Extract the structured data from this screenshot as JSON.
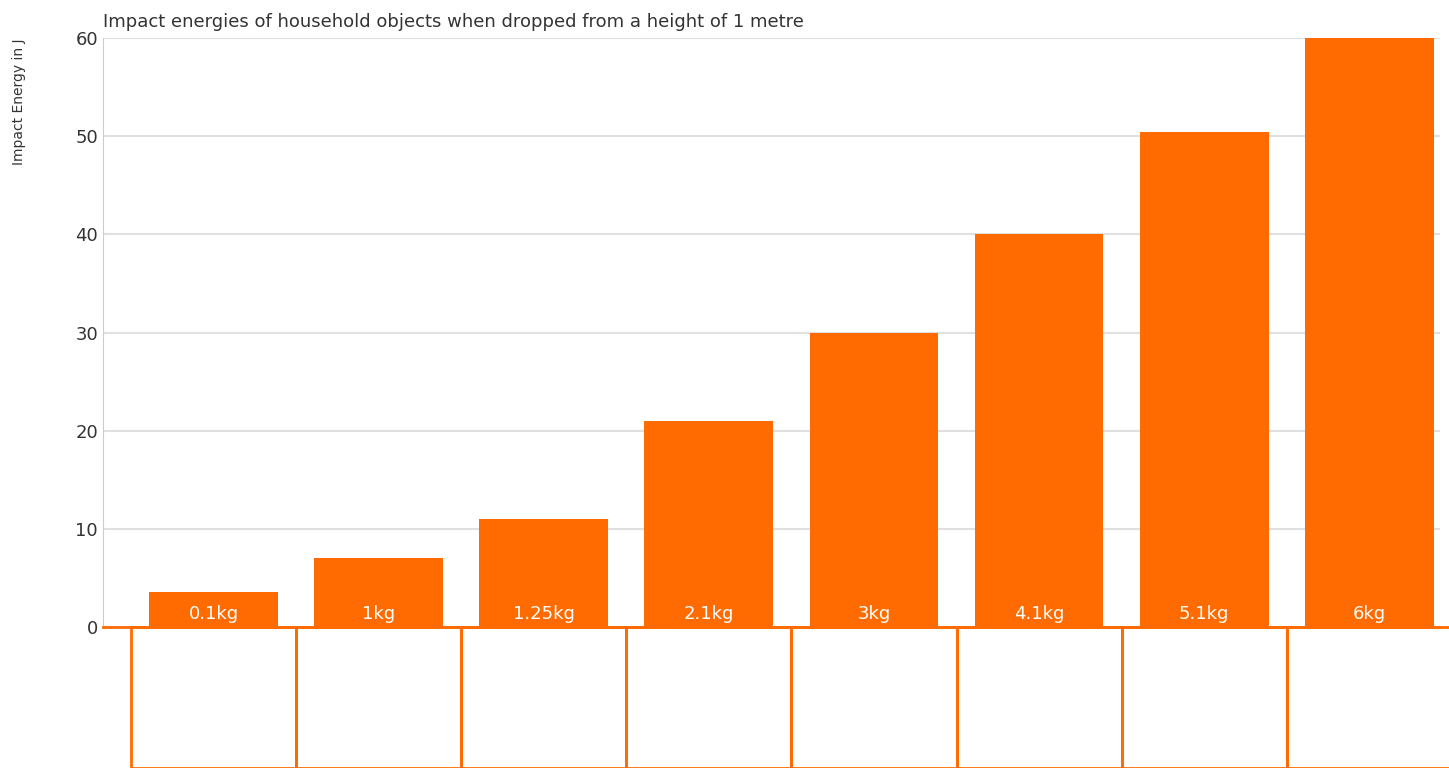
{
  "chart_data": {
    "type": "bar",
    "title": "Impact energies of household objects when dropped from a height of 1 metre",
    "y_label": "Impact Energy in J",
    "categories": [
      "0.1kg",
      "1kg",
      "1.25kg",
      "2.1kg",
      "3kg",
      "4.1kg",
      "5.1kg",
      "6kg"
    ],
    "values": [
      3.5,
      7,
      11,
      21,
      30,
      40,
      50.5,
      60
    ],
    "color": "#ff6b00",
    "ylim": [
      0,
      60
    ],
    "yticks": [
      0,
      10,
      20,
      30,
      40,
      50,
      60
    ],
    "grid": true,
    "tick_labels": "y"
  }
}
